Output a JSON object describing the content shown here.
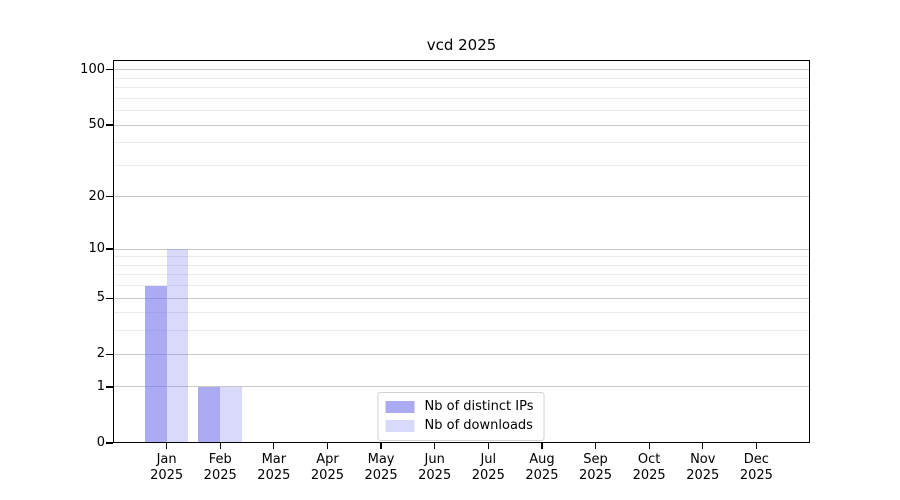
{
  "chart_data": {
    "type": "bar",
    "title": "vcd 2025",
    "categories": [
      "Jan",
      "Feb",
      "Mar",
      "Apr",
      "May",
      "Jun",
      "Jul",
      "Aug",
      "Sep",
      "Oct",
      "Nov",
      "Dec"
    ],
    "category_year": "2025",
    "series": [
      {
        "name": "Nb of distinct IPs",
        "fill": "rgba(119,119,238,0.62)",
        "color_hex_on_white": "#aaaaf4",
        "values": [
          6,
          1,
          0,
          0,
          0,
          0,
          0,
          0,
          0,
          0,
          0,
          0
        ]
      },
      {
        "name": "Nb of downloads",
        "fill": "rgba(119,119,238,0.28)",
        "color_hex_on_white": "#d9d9fa",
        "values": [
          10,
          1,
          0,
          0,
          0,
          0,
          0,
          0,
          0,
          0,
          0,
          0
        ]
      }
    ],
    "yscale": "log1p",
    "ylim": [
      0,
      113
    ],
    "y_tick_values": [
      0,
      1,
      2,
      5,
      10,
      20,
      50,
      100
    ],
    "y_tick_labels": [
      "0",
      "1",
      "2",
      "5",
      "10",
      "20",
      "50",
      "100"
    ],
    "y_minor_gridlines": [
      3,
      4,
      6,
      7,
      8,
      9,
      30,
      40,
      60,
      70,
      80,
      90
    ],
    "grid": "horizontal",
    "legend_position": "lower center"
  },
  "colors": {
    "background": "#ffffff",
    "axis": "#000000",
    "major_grid": "#c8c8c8",
    "minor_grid": "#ebebeb",
    "text": "#000000",
    "legend_border": "#d2d2d2"
  }
}
